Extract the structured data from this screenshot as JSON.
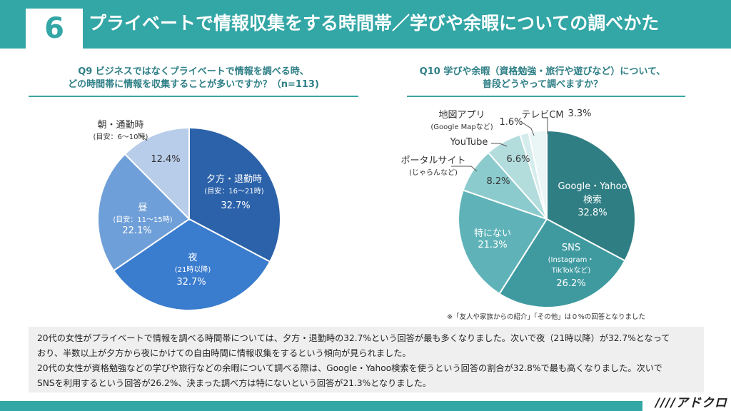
{
  "header": {
    "number": "6",
    "title": "プライベートで情報収集をする時間帯／学びや余暇についての調べかた"
  },
  "left": {
    "question_line1": "Q9 ビジネスではなくプライベートで情報を調べる時、",
    "question_line2": "どの時間帯に情報を収集することが多いですか？（n=113)"
  },
  "right": {
    "question_line1": "Q10 学びや余暇（資格勉強・旅行や遊びなど）について、",
    "question_line2": "普段どうやって調べますか？"
  },
  "chart_data": [
    {
      "type": "pie",
      "title": "Q9 ビジネスではなくプライベートで情報を調べる時、どの時間帯に情報を収集することが多いですか？（n=113)",
      "slices": [
        {
          "label": "夕方・退勤時",
          "sub": "(目安：16～21時)",
          "value": 32.7,
          "value_label": "32.7%",
          "color": "#2b62aa"
        },
        {
          "label": "夜",
          "sub": "(21時以降)",
          "value": 32.7,
          "value_label": "32.7%",
          "color": "#3a7cce"
        },
        {
          "label": "昼",
          "sub": "(目安：11～15時)",
          "value": 22.1,
          "value_label": "22.1%",
          "color": "#6f9fd8"
        },
        {
          "label": "朝・通勤時",
          "sub": "(目安：6～10時)",
          "value": 12.4,
          "value_label": "12.4%",
          "color": "#b8cdea"
        }
      ]
    },
    {
      "type": "pie",
      "title": "Q10 学びや余暇（資格勉強・旅行や遊びなど）について、普段どうやって調べますか？",
      "slices": [
        {
          "label": "Google・Yahoo",
          "label2": "検索",
          "value": 32.8,
          "value_label": "32.8%",
          "color": "#2f7e83"
        },
        {
          "label": "SNS",
          "sub": "(Instagram・",
          "sub2": "TikTokなど)",
          "value": 26.2,
          "value_label": "26.2%",
          "color": "#3f9aa0"
        },
        {
          "label": "特にない",
          "value": 21.3,
          "value_label": "21.3%",
          "color": "#5fb3b8"
        },
        {
          "label": "ポータルサイト",
          "sub": "(じゃらんなど)",
          "value": 8.2,
          "value_label": "8.2%",
          "color": "#8ccbcd"
        },
        {
          "label": "YouTube",
          "value": 6.6,
          "value_label": "6.6%",
          "color": "#b3dcdd"
        },
        {
          "label": "地図アプリ",
          "sub": "(Google Mapなど)",
          "value": 1.6,
          "value_label": "1.6%",
          "color": "#d5ecec"
        },
        {
          "label": "テレビCM",
          "value": 3.3,
          "value_label": "3.3%",
          "color": "#eaf5f5"
        }
      ],
      "note": "※「友人や家族からの紹介」「その他」は０%の回答となりました"
    }
  ],
  "summary": {
    "line1": "20代の女性がプライベートで情報を調べる時間帯については、夕方・退勤時の32.7%という回答が最も多くなりました。次いで夜（21時以降）が32.7%となって",
    "line2": "おり、半数以上が夕方から夜にかけての自由時間に情報収集をするという傾向が見られました。",
    "line3": "20代の女性が資格勉強などの学びや旅行などの余暇について調べる際は、Google・Yahoo検索を使うという回答の割合が32.8%で最も高くなりました。次いで",
    "line4": "SNSを利用するという回答が26.2%、決まった調べ方は特にないという回答が21.3%となりました。"
  },
  "footer": {
    "logo": "////アドクロ"
  }
}
